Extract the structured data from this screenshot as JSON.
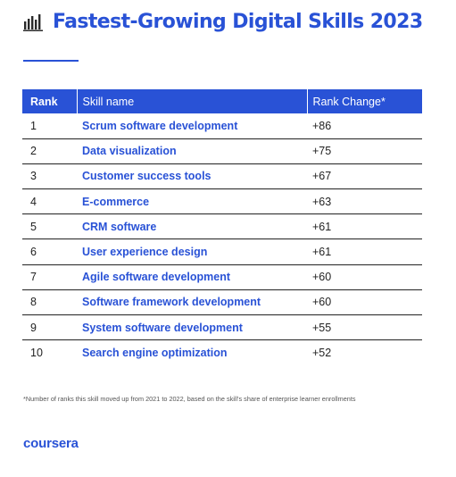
{
  "title": "Fastest-Growing Digital Skills 2023",
  "header_icon": "bar-chart-icon",
  "accent_color": "#2952d6",
  "table": {
    "headers": [
      "Rank",
      "Skill name",
      "Rank Change*"
    ],
    "rows": [
      {
        "rank": "1",
        "skill": "Scrum software development",
        "change": "+86"
      },
      {
        "rank": "2",
        "skill": "Data visualization",
        "change": "+75"
      },
      {
        "rank": "3",
        "skill": "Customer success tools",
        "change": "+67"
      },
      {
        "rank": "4",
        "skill": "E-commerce",
        "change": "+63"
      },
      {
        "rank": "5",
        "skill": "CRM software",
        "change": "+61"
      },
      {
        "rank": "6",
        "skill": "User experience design",
        "change": "+61"
      },
      {
        "rank": "7",
        "skill": "Agile software development",
        "change": "+60"
      },
      {
        "rank": "8",
        "skill": "Software framework development",
        "change": "+60"
      },
      {
        "rank": "9",
        "skill": "System software development",
        "change": "+55"
      },
      {
        "rank": "10",
        "skill": "Search engine optimization",
        "change": "+52"
      }
    ]
  },
  "footnote": "*Number of ranks this skill moved up from 2021 to 2022, based on the skill's share of enterprise learner enrollments",
  "logo_text": "coursera"
}
